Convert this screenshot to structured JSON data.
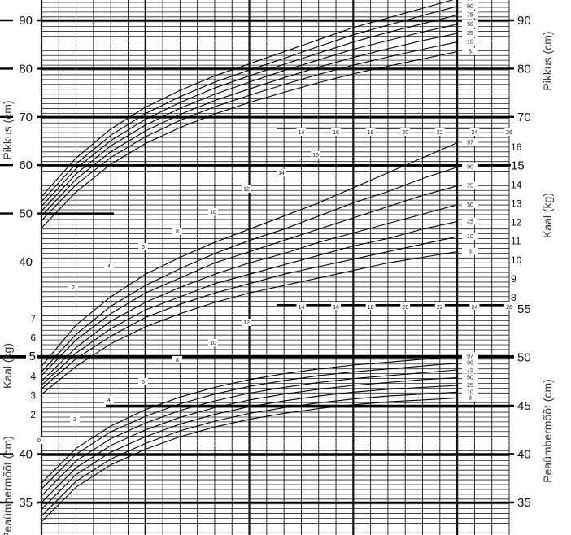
{
  "chart_data": [
    {
      "type": "line",
      "name_cells": "length_for_age",
      "ylabel_left": "Pikkus (cm)",
      "ylabel_right": "Pikkus (cm)",
      "y_ticks": [
        40,
        50,
        60,
        70,
        80,
        90
      ],
      "y_ticks_right": [
        70,
        80,
        90
      ],
      "x_ticks_top": [
        14,
        16,
        18,
        20,
        22,
        24,
        26
      ],
      "x_ticks_inner": [
        2,
        4,
        6,
        8,
        10,
        12,
        14,
        16
      ],
      "percentile_labels": [
        "97",
        "90",
        "75",
        "50",
        "25",
        "10",
        "3"
      ],
      "x_months": [
        0,
        2,
        4,
        6,
        8,
        10,
        12,
        14,
        16,
        18,
        20,
        22,
        24
      ],
      "series": [
        {
          "name": "97",
          "values": [
            53.5,
            61.5,
            67.5,
            72.0,
            75.5,
            78.5,
            81.0,
            83.5,
            86.0,
            88.5,
            90.5,
            92.5,
            94.5
          ]
        },
        {
          "name": "90",
          "values": [
            52.5,
            60.3,
            66.2,
            70.7,
            74.2,
            77.2,
            79.7,
            82.1,
            84.6,
            87.0,
            89.0,
            91.0,
            92.9
          ]
        },
        {
          "name": "75",
          "values": [
            51.5,
            59.3,
            65.1,
            69.5,
            73.0,
            76.0,
            78.5,
            80.9,
            83.2,
            85.5,
            87.5,
            89.3,
            91.1
          ]
        },
        {
          "name": "50",
          "values": [
            50.5,
            58.2,
            64.0,
            68.3,
            71.8,
            74.7,
            77.2,
            79.6,
            81.8,
            84.0,
            85.8,
            87.6,
            89.2
          ]
        },
        {
          "name": "25",
          "values": [
            49.5,
            57.1,
            62.8,
            67.1,
            70.5,
            73.4,
            75.8,
            78.1,
            80.3,
            82.3,
            84.1,
            85.8,
            87.3
          ]
        },
        {
          "name": "10",
          "values": [
            48.5,
            56.0,
            61.6,
            65.9,
            69.3,
            72.1,
            74.5,
            76.7,
            78.8,
            80.7,
            82.4,
            84.0,
            85.5
          ]
        },
        {
          "name": "3",
          "values": [
            47.0,
            54.5,
            60.2,
            64.5,
            67.8,
            70.6,
            73.0,
            75.1,
            77.1,
            78.9,
            80.5,
            82.0,
            83.5
          ]
        }
      ]
    },
    {
      "type": "line",
      "name_cells": "weight_for_age_upper",
      "ylabel_right": "Kaal (kg)",
      "y_ticks_right": [
        8,
        9,
        10,
        11,
        12,
        13,
        14,
        15,
        16
      ],
      "x_ticks_top": [
        18,
        20,
        22,
        24,
        26
      ],
      "x_ticks_inner": [
        14,
        16,
        18,
        20,
        22,
        24,
        26
      ],
      "percentile_labels": [
        "97",
        "90",
        "75",
        "50",
        "25",
        "10",
        "3"
      ],
      "x_months": [
        0,
        2,
        4,
        6,
        8,
        10,
        12,
        14,
        16,
        18,
        20,
        22,
        24
      ],
      "series": [
        {
          "name": "97",
          "values": [
            4.3,
            6.5,
            8.0,
            9.2,
            10.1,
            10.9,
            11.6,
            12.3,
            13.0,
            13.8,
            14.6,
            15.4,
            16.2
          ]
        },
        {
          "name": "90",
          "values": [
            4.0,
            6.0,
            7.5,
            8.6,
            9.5,
            10.3,
            11.0,
            11.6,
            12.3,
            13.0,
            13.6,
            14.3,
            14.9
          ]
        },
        {
          "name": "75",
          "values": [
            3.8,
            5.7,
            7.1,
            8.2,
            9.0,
            9.8,
            10.4,
            11.0,
            11.6,
            12.2,
            12.8,
            13.4,
            13.9
          ]
        },
        {
          "name": "50",
          "values": [
            3.5,
            5.3,
            6.7,
            7.7,
            8.5,
            9.2,
            9.8,
            10.3,
            10.9,
            11.4,
            11.9,
            12.4,
            12.9
          ]
        },
        {
          "name": "25",
          "values": [
            3.3,
            5.0,
            6.3,
            7.3,
            8.0,
            8.7,
            9.2,
            9.7,
            10.2,
            10.7,
            11.1,
            11.6,
            12.0
          ]
        },
        {
          "name": "10",
          "values": [
            3.1,
            4.7,
            5.9,
            6.9,
            7.6,
            8.2,
            8.7,
            9.2,
            9.6,
            10.0,
            10.4,
            10.8,
            11.2
          ]
        },
        {
          "name": "3",
          "values": [
            2.8,
            4.3,
            5.5,
            6.4,
            7.1,
            7.7,
            8.2,
            8.6,
            9.0,
            9.4,
            9.8,
            10.1,
            10.4
          ]
        }
      ]
    },
    {
      "type": "line",
      "name_cells": "weight_for_age_lower",
      "ylabel_left": "Kaal (kg)",
      "y_ticks": [
        2,
        3,
        4,
        5,
        6,
        7
      ],
      "x_ticks_inner": [
        0,
        2,
        4,
        6,
        8,
        10,
        12
      ]
    },
    {
      "type": "line",
      "name_cells": "head_circumference_for_age",
      "ylabel_left": "Peaümbermõõt (cm)",
      "ylabel_right": "Peaümbermõõt (cm)",
      "y_ticks": [
        35,
        40
      ],
      "y_ticks_right": [
        35,
        40,
        45,
        50,
        55
      ],
      "percentile_labels": [
        "97",
        "90",
        "75",
        "50",
        "25",
        "10",
        "3"
      ],
      "x_months": [
        0,
        2,
        4,
        6,
        8,
        10,
        12,
        14,
        16,
        18,
        20,
        22,
        24
      ],
      "series": [
        {
          "name": "97",
          "values": [
            37.0,
            40.6,
            42.9,
            44.6,
            45.9,
            46.9,
            47.7,
            48.3,
            48.8,
            49.2,
            49.5,
            49.8,
            50.1
          ]
        },
        {
          "name": "90",
          "values": [
            36.4,
            40.0,
            42.3,
            43.9,
            45.2,
            46.2,
            47.0,
            47.6,
            48.1,
            48.5,
            48.8,
            49.1,
            49.4
          ]
        },
        {
          "name": "75",
          "values": [
            35.7,
            39.3,
            41.6,
            43.2,
            44.5,
            45.5,
            46.3,
            46.9,
            47.4,
            47.8,
            48.1,
            48.4,
            48.7
          ]
        },
        {
          "name": "50",
          "values": [
            35.0,
            38.6,
            40.9,
            42.5,
            43.8,
            44.8,
            45.6,
            46.2,
            46.7,
            47.1,
            47.4,
            47.7,
            47.9
          ]
        },
        {
          "name": "25",
          "values": [
            34.3,
            37.9,
            40.2,
            41.8,
            43.1,
            44.1,
            44.9,
            45.5,
            46.0,
            46.4,
            46.7,
            46.9,
            47.1
          ]
        },
        {
          "name": "10",
          "values": [
            33.6,
            37.2,
            39.5,
            41.1,
            42.4,
            43.4,
            44.2,
            44.8,
            45.3,
            45.7,
            46.0,
            46.2,
            46.4
          ]
        },
        {
          "name": "3",
          "values": [
            33.0,
            36.6,
            38.9,
            40.5,
            41.8,
            42.8,
            43.6,
            44.2,
            44.7,
            45.1,
            45.4,
            45.6,
            45.8
          ]
        }
      ]
    }
  ]
}
